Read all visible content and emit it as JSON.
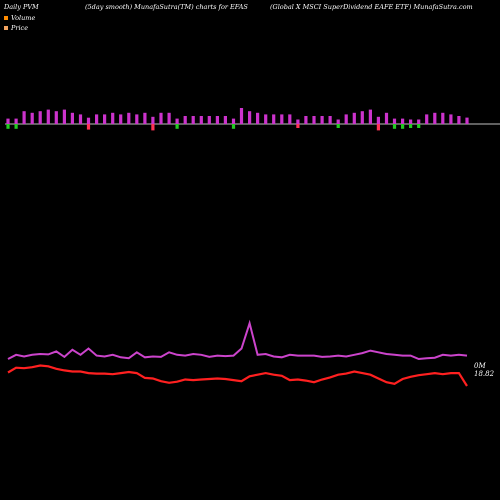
{
  "header": {
    "left": "Daily PVM",
    "mid": "(5day smooth) MunafaSutra(TM) charts for EFAS",
    "right": "(Global X MSCI SuperDividend EAFE ETF) MunafaSutra.com"
  },
  "legend": [
    {
      "label": "Volume",
      "color": "#ff8c00"
    },
    {
      "label": "Price",
      "color": "#f4a460"
    }
  ],
  "end_labels": {
    "volume": "0M",
    "price": "18.82"
  },
  "chart_data": {
    "type": "line",
    "x_count": 58,
    "volume_bars": {
      "up_color": "#cc33cc",
      "down_color": "#22cc22",
      "strong_down_color": "#ff3355",
      "series": [
        {
          "v": 0.6,
          "c": "down"
        },
        {
          "v": 0.6,
          "c": "down"
        },
        {
          "v": 0.8,
          "c": "up"
        },
        {
          "v": 0.7,
          "c": "up"
        },
        {
          "v": 0.8,
          "c": "up"
        },
        {
          "v": 0.9,
          "c": "up"
        },
        {
          "v": 0.8,
          "c": "up"
        },
        {
          "v": 0.9,
          "c": "up"
        },
        {
          "v": 0.7,
          "c": "up"
        },
        {
          "v": 0.6,
          "c": "up"
        },
        {
          "v": 0.7,
          "c": "down_strong"
        },
        {
          "v": 0.6,
          "c": "up"
        },
        {
          "v": 0.6,
          "c": "up"
        },
        {
          "v": 0.7,
          "c": "up"
        },
        {
          "v": 0.6,
          "c": "up"
        },
        {
          "v": 0.7,
          "c": "up"
        },
        {
          "v": 0.6,
          "c": "up"
        },
        {
          "v": 0.7,
          "c": "up"
        },
        {
          "v": 0.8,
          "c": "down_strong"
        },
        {
          "v": 0.7,
          "c": "up"
        },
        {
          "v": 0.7,
          "c": "up"
        },
        {
          "v": 0.6,
          "c": "down"
        },
        {
          "v": 0.5,
          "c": "up"
        },
        {
          "v": 0.5,
          "c": "up"
        },
        {
          "v": 0.5,
          "c": "up"
        },
        {
          "v": 0.5,
          "c": "up"
        },
        {
          "v": 0.5,
          "c": "up"
        },
        {
          "v": 0.5,
          "c": "up"
        },
        {
          "v": 0.6,
          "c": "down"
        },
        {
          "v": 1.0,
          "c": "up"
        },
        {
          "v": 0.8,
          "c": "up"
        },
        {
          "v": 0.7,
          "c": "up"
        },
        {
          "v": 0.6,
          "c": "up"
        },
        {
          "v": 0.6,
          "c": "up"
        },
        {
          "v": 0.6,
          "c": "up"
        },
        {
          "v": 0.6,
          "c": "up"
        },
        {
          "v": 0.5,
          "c": "down_strong"
        },
        {
          "v": 0.5,
          "c": "up"
        },
        {
          "v": 0.5,
          "c": "up"
        },
        {
          "v": 0.5,
          "c": "up"
        },
        {
          "v": 0.5,
          "c": "up"
        },
        {
          "v": 0.5,
          "c": "down"
        },
        {
          "v": 0.6,
          "c": "up"
        },
        {
          "v": 0.7,
          "c": "up"
        },
        {
          "v": 0.8,
          "c": "up"
        },
        {
          "v": 0.9,
          "c": "up"
        },
        {
          "v": 0.8,
          "c": "down_strong"
        },
        {
          "v": 0.7,
          "c": "up"
        },
        {
          "v": 0.6,
          "c": "down"
        },
        {
          "v": 0.6,
          "c": "down"
        },
        {
          "v": 0.5,
          "c": "down"
        },
        {
          "v": 0.5,
          "c": "down"
        },
        {
          "v": 0.6,
          "c": "up"
        },
        {
          "v": 0.7,
          "c": "up"
        },
        {
          "v": 0.7,
          "c": "up"
        },
        {
          "v": 0.6,
          "c": "up"
        },
        {
          "v": 0.5,
          "c": "up"
        },
        {
          "v": 0.4,
          "c": "up"
        }
      ]
    },
    "volume_line": {
      "color": "#cc44cc",
      "values": [
        50,
        60,
        56,
        60,
        62,
        61,
        68,
        55,
        72,
        60,
        75,
        58,
        56,
        60,
        54,
        52,
        66,
        54,
        56,
        55,
        66,
        60,
        58,
        62,
        60,
        55,
        58,
        57,
        58,
        75,
        135,
        60,
        62,
        56,
        54,
        60,
        58,
        58,
        58,
        55,
        56,
        58,
        56,
        60,
        64,
        70,
        66,
        62,
        60,
        58,
        58,
        50,
        52,
        53,
        60,
        58,
        60,
        58
      ]
    },
    "price_line": {
      "color": "#ff2020",
      "values": [
        19.32,
        19.5,
        19.48,
        19.52,
        19.58,
        19.55,
        19.46,
        19.4,
        19.36,
        19.36,
        19.3,
        19.28,
        19.28,
        19.26,
        19.3,
        19.34,
        19.3,
        19.12,
        19.1,
        19.0,
        18.94,
        18.98,
        19.06,
        19.04,
        19.06,
        19.08,
        19.1,
        19.08,
        19.04,
        19.0,
        19.18,
        19.24,
        19.3,
        19.24,
        19.2,
        19.04,
        19.06,
        19.02,
        18.96,
        19.06,
        19.14,
        19.24,
        19.28,
        19.36,
        19.3,
        19.24,
        19.1,
        18.96,
        18.9,
        19.08,
        19.16,
        19.22,
        19.26,
        19.3,
        19.26,
        19.3,
        19.3,
        18.82
      ]
    },
    "title": "",
    "xlabel": "",
    "ylabel": ""
  }
}
